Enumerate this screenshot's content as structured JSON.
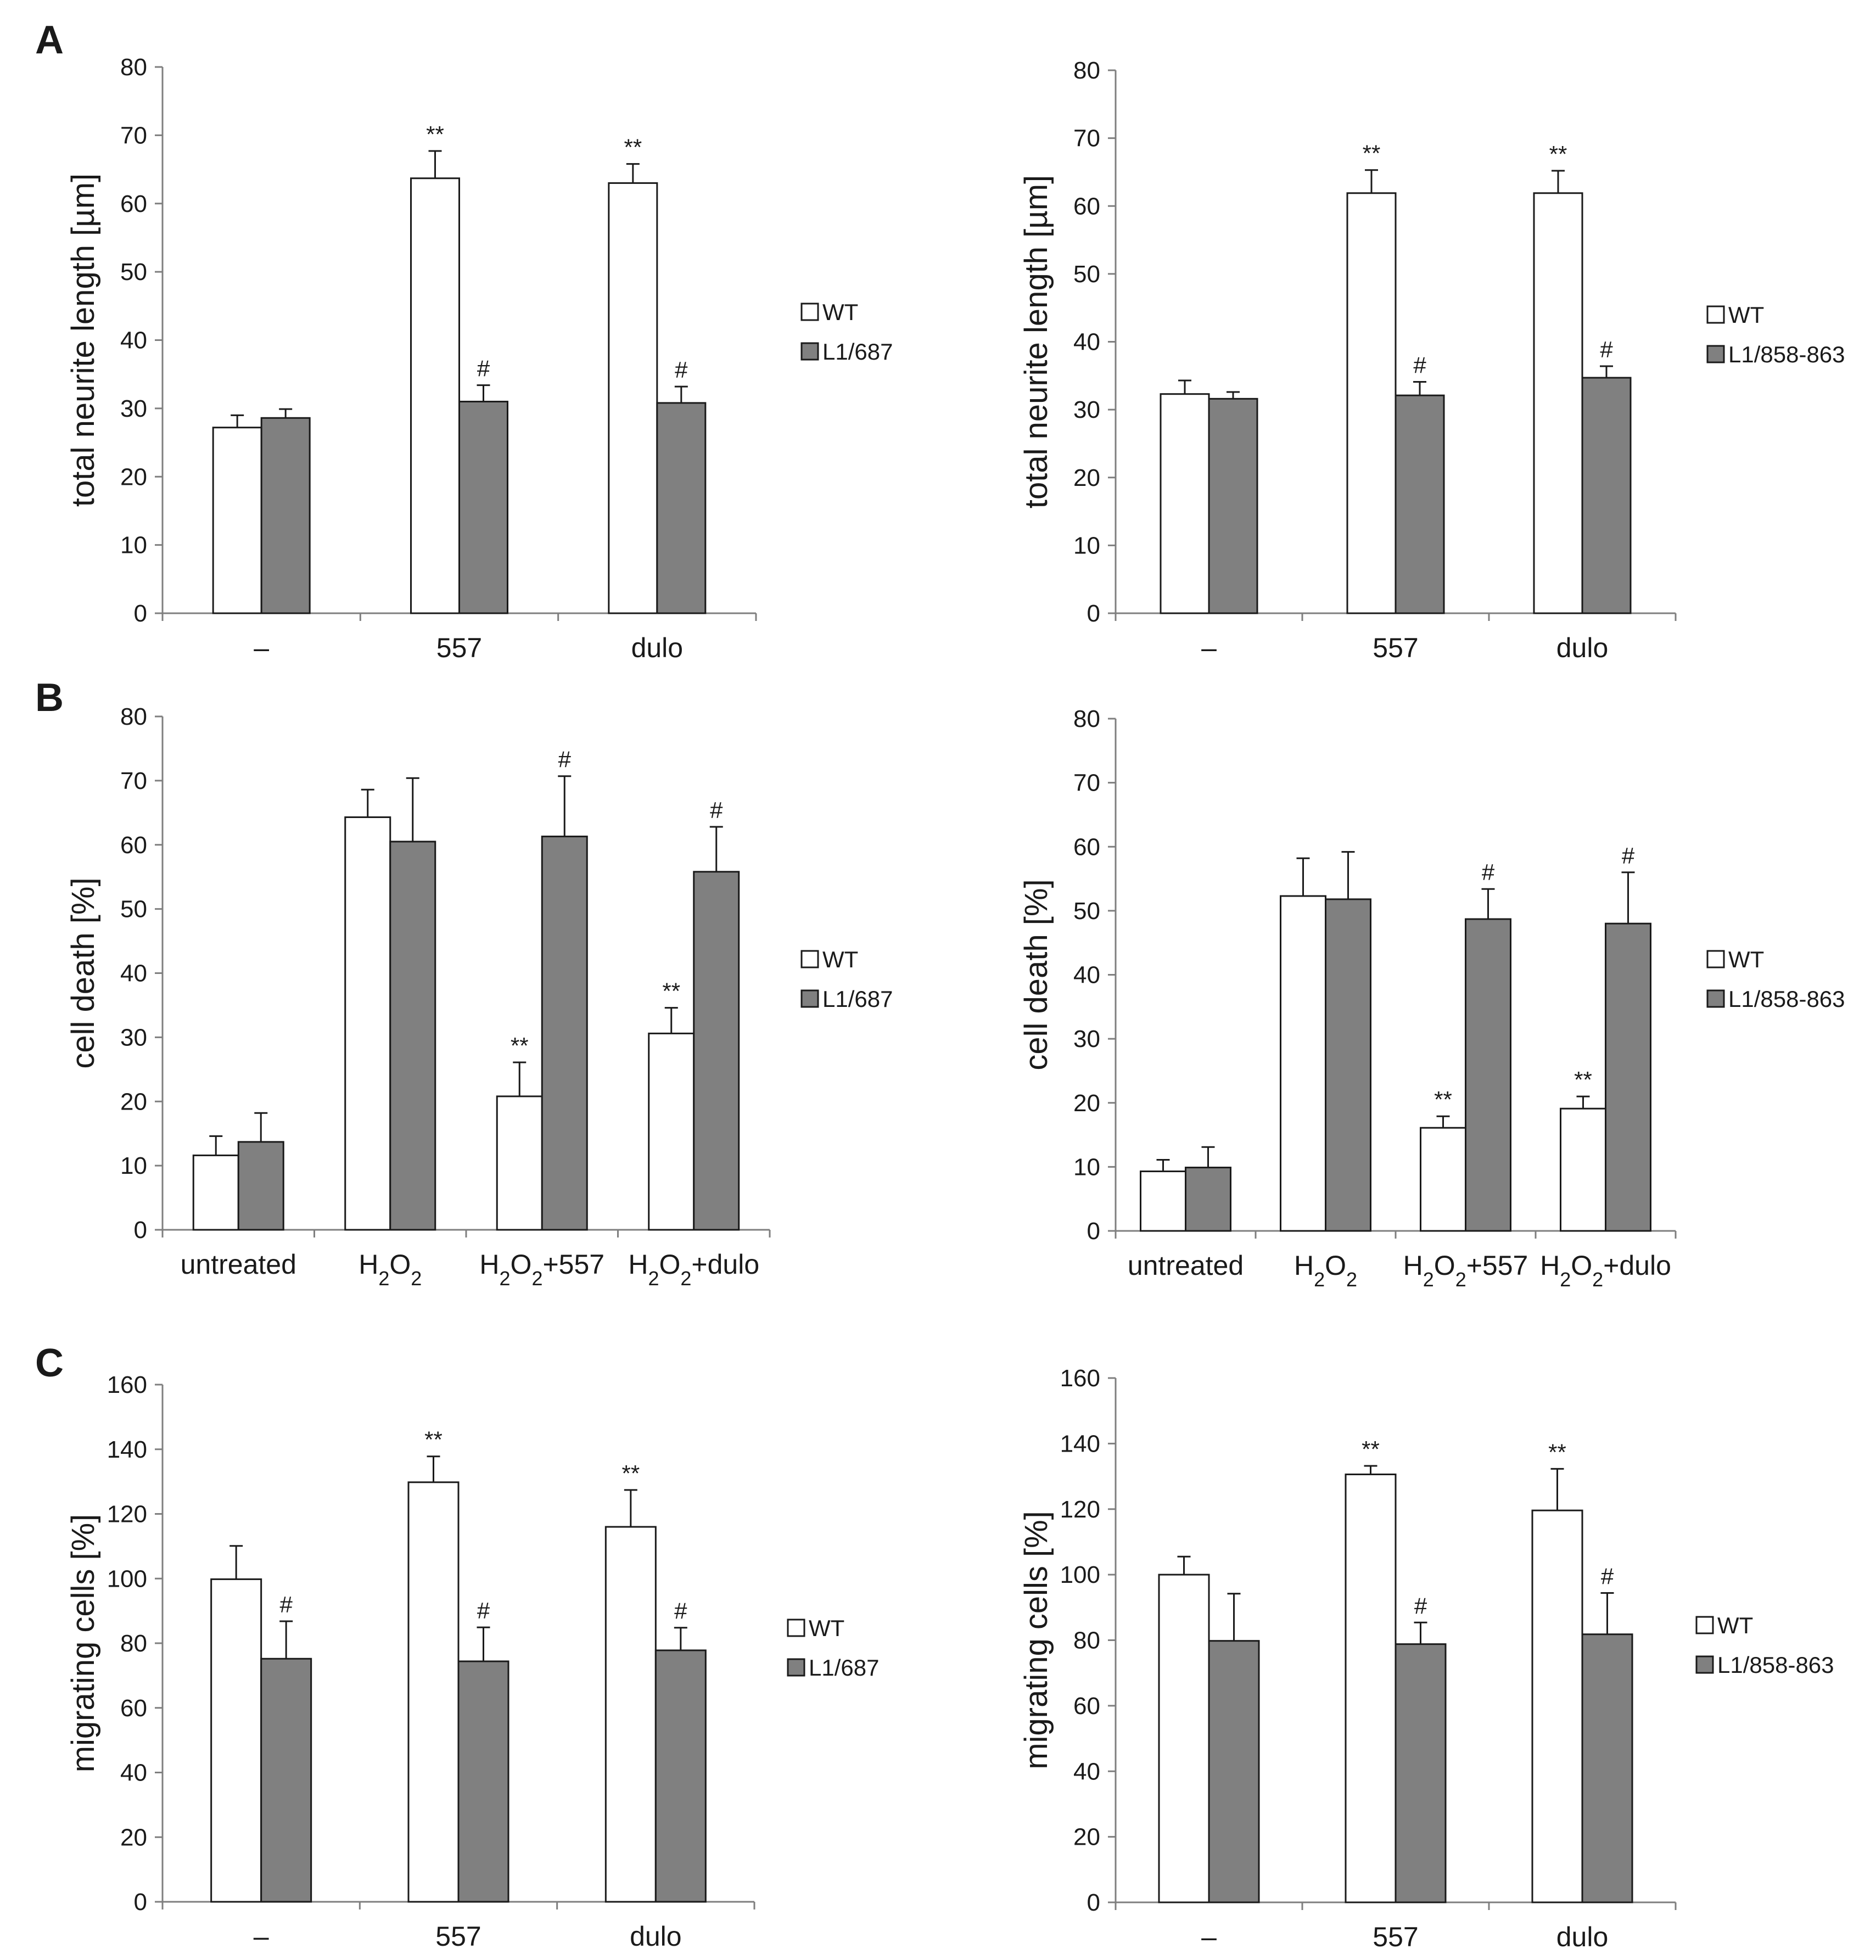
{
  "figure": {
    "panel_labels": [
      "A",
      "B",
      "C"
    ]
  },
  "colors": {
    "wt_fill": "#ffffff",
    "mut_fill": "#808080",
    "stroke": "#1a1a1a",
    "axis": "#7f7f7f"
  },
  "chart_data": [
    {
      "id": "A-left",
      "type": "bar",
      "ylabel": "total neurite length [µm]",
      "ylim": [
        0,
        80
      ],
      "yticks": [
        0,
        10,
        20,
        30,
        40,
        50,
        60,
        70,
        80
      ],
      "categories": [
        "–",
        "557",
        "dulo"
      ],
      "series": [
        {
          "name": "WT",
          "values": [
            27.2,
            63.7,
            63.0
          ],
          "errors": [
            1.8,
            4.0,
            2.8
          ],
          "labels": [
            "",
            "**",
            "**"
          ]
        },
        {
          "name": "L1/687",
          "values": [
            28.6,
            31.0,
            30.8
          ],
          "errors": [
            1.3,
            2.4,
            2.4
          ],
          "labels": [
            "",
            "#",
            "#"
          ]
        }
      ],
      "legend": [
        "WT",
        "L1/687"
      ]
    },
    {
      "id": "A-right",
      "type": "bar",
      "ylabel": "total neurite length [µm]",
      "ylim": [
        0,
        80
      ],
      "yticks": [
        0,
        10,
        20,
        30,
        40,
        50,
        60,
        70,
        80
      ],
      "categories": [
        "–",
        "557",
        "dulo"
      ],
      "series": [
        {
          "name": "WT",
          "values": [
            32.3,
            61.9,
            61.9
          ],
          "errors": [
            2.0,
            3.4,
            3.3
          ],
          "labels": [
            "",
            "**",
            "**"
          ]
        },
        {
          "name": "L1/858-863",
          "values": [
            31.6,
            32.1,
            34.7
          ],
          "errors": [
            1.0,
            2.0,
            1.7
          ],
          "labels": [
            "",
            "#",
            "#"
          ]
        }
      ],
      "legend": [
        "WT",
        "L1/858-863"
      ]
    },
    {
      "id": "B-left",
      "type": "bar",
      "ylabel": "cell death [%]",
      "ylim": [
        0,
        80
      ],
      "yticks": [
        0,
        10,
        20,
        30,
        40,
        50,
        60,
        70,
        80
      ],
      "categories": [
        "untreated",
        "H2O2",
        "H2O2+557",
        "H2O2+dulo"
      ],
      "series": [
        {
          "name": "WT",
          "values": [
            11.6,
            64.3,
            20.8,
            30.6
          ],
          "errors": [
            3.0,
            4.3,
            5.3,
            4.0
          ],
          "labels": [
            "",
            "",
            "**",
            "**"
          ]
        },
        {
          "name": "L1/687",
          "values": [
            13.7,
            60.5,
            61.3,
            55.8
          ],
          "errors": [
            4.5,
            9.9,
            9.4,
            7.0
          ],
          "labels": [
            "",
            "",
            "#",
            "#"
          ]
        }
      ],
      "legend": [
        "WT",
        "L1/687"
      ]
    },
    {
      "id": "B-right",
      "type": "bar",
      "ylabel": "cell death [%]",
      "ylim": [
        0,
        80
      ],
      "yticks": [
        0,
        10,
        20,
        30,
        40,
        50,
        60,
        70,
        80
      ],
      "categories": [
        "untreated",
        "H2O2",
        "H2O2+557",
        "H2O2+dulo"
      ],
      "series": [
        {
          "name": "WT",
          "values": [
            9.3,
            52.3,
            16.1,
            19.1
          ],
          "errors": [
            1.8,
            5.9,
            1.8,
            1.9
          ],
          "labels": [
            "",
            "",
            "**",
            "**"
          ]
        },
        {
          "name": "L1/858-863",
          "values": [
            9.9,
            51.8,
            48.7,
            48.0
          ],
          "errors": [
            3.2,
            7.4,
            4.7,
            8.0
          ],
          "labels": [
            "",
            "",
            "#",
            "#"
          ]
        }
      ],
      "legend": [
        "WT",
        "L1/858-863"
      ]
    },
    {
      "id": "C-left",
      "type": "bar",
      "ylabel": "migrating cells [%]",
      "ylim": [
        0,
        160
      ],
      "yticks": [
        0,
        20,
        40,
        60,
        80,
        100,
        120,
        140,
        160
      ],
      "categories": [
        "–",
        "557",
        "dulo"
      ],
      "series": [
        {
          "name": "WT",
          "values": [
            99.8,
            129.8,
            116.0
          ],
          "errors": [
            10.3,
            8.0,
            11.4
          ],
          "labels": [
            "",
            "**",
            "**"
          ]
        },
        {
          "name": "L1/687",
          "values": [
            75.2,
            74.4,
            77.8
          ],
          "errors": [
            11.6,
            10.5,
            7.0
          ],
          "labels": [
            "#",
            "#",
            "#"
          ]
        }
      ],
      "legend": [
        "WT",
        "L1/687"
      ]
    },
    {
      "id": "C-right",
      "type": "bar",
      "ylabel": "migrating cells [%]",
      "ylim": [
        0,
        160
      ],
      "yticks": [
        0,
        20,
        40,
        60,
        80,
        100,
        120,
        140,
        160
      ],
      "categories": [
        "–",
        "557",
        "dulo"
      ],
      "series": [
        {
          "name": "WT",
          "values": [
            100.0,
            130.6,
            119.6
          ],
          "errors": [
            5.5,
            2.6,
            12.7
          ],
          "labels": [
            "",
            "**",
            "**"
          ]
        },
        {
          "name": "L1/858-863",
          "values": [
            79.8,
            78.8,
            81.8
          ],
          "errors": [
            14.4,
            6.6,
            12.6
          ],
          "labels": [
            "",
            "#",
            "#"
          ]
        }
      ],
      "legend": [
        "WT",
        "L1/858-863"
      ]
    }
  ]
}
